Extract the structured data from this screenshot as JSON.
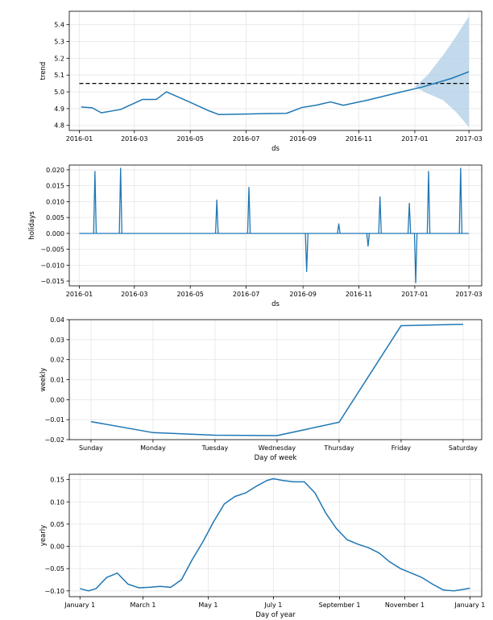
{
  "colors": {
    "line": "#1f77b4",
    "band": "#aecde5",
    "dashed": "#000000",
    "grid": "#e6e6e6"
  },
  "chart_data": [
    {
      "type": "line",
      "name": "trend-panel",
      "xlabel": "ds",
      "ylabel": "trend",
      "x_axis": "date",
      "xlim": [
        "2015-12-21",
        "2017-03-15"
      ],
      "ylim": [
        4.77,
        5.48
      ],
      "xticks": [
        {
          "v": "2016-01-01",
          "label": "2016-01"
        },
        {
          "v": "2016-03-01",
          "label": "2016-03"
        },
        {
          "v": "2016-05-01",
          "label": "2016-05"
        },
        {
          "v": "2016-07-01",
          "label": "2016-07"
        },
        {
          "v": "2016-09-01",
          "label": "2016-09"
        },
        {
          "v": "2016-11-01",
          "label": "2016-11"
        },
        {
          "v": "2017-01-01",
          "label": "2017-01"
        },
        {
          "v": "2017-03-01",
          "label": "2017-03"
        }
      ],
      "yticks": [
        4.8,
        4.9,
        5.0,
        5.1,
        5.2,
        5.3,
        5.4
      ],
      "grid": true,
      "series": [
        {
          "style": "line",
          "x": [
            "2016-01-03",
            "2016-01-15",
            "2016-01-25",
            "2016-02-15",
            "2016-03-10",
            "2016-03-25",
            "2016-04-05",
            "2016-04-28",
            "2016-05-20",
            "2016-06-01",
            "2016-07-01",
            "2016-07-20",
            "2016-08-14",
            "2016-08-31",
            "2016-09-15",
            "2016-10-01",
            "2016-10-15",
            "2016-11-10",
            "2016-12-10",
            "2017-01-10",
            "2017-02-10",
            "2017-03-01"
          ],
          "y": [
            4.91,
            4.905,
            4.875,
            4.895,
            4.955,
            4.955,
            5.0,
            4.945,
            4.89,
            4.865,
            4.868,
            4.87,
            4.872,
            4.907,
            4.92,
            4.94,
            4.92,
            4.95,
            4.99,
            5.03,
            5.08,
            5.12
          ]
        },
        {
          "style": "band",
          "x": [
            "2017-01-01",
            "2017-01-15",
            "2017-02-01",
            "2017-02-15",
            "2017-03-01"
          ],
          "upper": [
            5.03,
            5.1,
            5.22,
            5.33,
            5.45
          ],
          "lower": [
            5.03,
            4.99,
            4.95,
            4.88,
            4.79
          ]
        },
        {
          "style": "dashed",
          "x": [
            "2016-01-01",
            "2017-03-01"
          ],
          "y": [
            5.05,
            5.05
          ]
        }
      ]
    },
    {
      "type": "line",
      "name": "holidays-panel",
      "xlabel": "ds",
      "ylabel": "holidays",
      "x_axis": "date",
      "xlim": [
        "2015-12-21",
        "2017-03-15"
      ],
      "ylim": [
        -0.0165,
        0.0215
      ],
      "xticks": [
        {
          "v": "2016-01-01",
          "label": "2016-01"
        },
        {
          "v": "2016-03-01",
          "label": "2016-03"
        },
        {
          "v": "2016-05-01",
          "label": "2016-05"
        },
        {
          "v": "2016-07-01",
          "label": "2016-07"
        },
        {
          "v": "2016-09-01",
          "label": "2016-09"
        },
        {
          "v": "2016-11-01",
          "label": "2016-11"
        },
        {
          "v": "2017-01-01",
          "label": "2017-01"
        },
        {
          "v": "2017-03-01",
          "label": "2017-03"
        }
      ],
      "yticks": [
        {
          "v": -0.015,
          "label": "−0.015"
        },
        {
          "v": -0.01,
          "label": "−0.010"
        },
        {
          "v": -0.005,
          "label": "−0.005"
        },
        {
          "v": 0.0,
          "label": "0.000"
        },
        {
          "v": 0.005,
          "label": "0.005"
        },
        {
          "v": 0.01,
          "label": "0.010"
        },
        {
          "v": 0.015,
          "label": "0.015"
        },
        {
          "v": 0.02,
          "label": "0.020"
        }
      ],
      "grid": true,
      "baseline": {
        "start": "2016-01-01",
        "end": "2017-03-01",
        "value": 0
      },
      "spikes": [
        {
          "date": "2016-01-18",
          "value": 0.0195
        },
        {
          "date": "2016-02-15",
          "value": 0.0205
        },
        {
          "date": "2016-05-30",
          "value": 0.0105
        },
        {
          "date": "2016-07-04",
          "value": 0.0145
        },
        {
          "date": "2016-09-05",
          "value": -0.012
        },
        {
          "date": "2016-10-10",
          "value": 0.003
        },
        {
          "date": "2016-11-11",
          "value": -0.004
        },
        {
          "date": "2016-11-24",
          "value": 0.0115
        },
        {
          "date": "2016-12-26",
          "value": 0.0095
        },
        {
          "date": "2017-01-02",
          "value": -0.0155
        },
        {
          "date": "2017-01-16",
          "value": 0.0195
        },
        {
          "date": "2017-02-20",
          "value": 0.0205
        }
      ]
    },
    {
      "type": "line",
      "name": "weekly-panel",
      "xlabel": "Day of week",
      "ylabel": "weekly",
      "categories": [
        "Sunday",
        "Monday",
        "Tuesday",
        "Wednesday",
        "Thursday",
        "Friday",
        "Saturday"
      ],
      "xlim": [
        -0.35,
        6.3
      ],
      "ylim": [
        -0.02,
        0.04
      ],
      "yticks": [
        {
          "v": -0.02,
          "label": "−0.02"
        },
        {
          "v": -0.01,
          "label": "−0.01"
        },
        {
          "v": 0.0,
          "label": "0.00"
        },
        {
          "v": 0.01,
          "label": "0.01"
        },
        {
          "v": 0.02,
          "label": "0.02"
        },
        {
          "v": 0.03,
          "label": "0.03"
        },
        {
          "v": 0.04,
          "label": "0.04"
        }
      ],
      "grid": true,
      "series": [
        {
          "style": "line",
          "values": [
            -0.011,
            -0.0165,
            -0.0178,
            -0.018,
            -0.0113,
            0.037,
            0.0377
          ]
        }
      ]
    },
    {
      "type": "line",
      "name": "yearly-panel",
      "xlabel": "Day of year",
      "ylabel": "yearly",
      "x_axis": "day_of_year",
      "xlim": [
        -10,
        376
      ],
      "ylim": [
        -0.113,
        0.162
      ],
      "xticks": [
        {
          "v": 0,
          "label": "January 1"
        },
        {
          "v": 59,
          "label": "March 1"
        },
        {
          "v": 120,
          "label": "May 1"
        },
        {
          "v": 181,
          "label": "July 1"
        },
        {
          "v": 243,
          "label": "September 1"
        },
        {
          "v": 304,
          "label": "November 1"
        },
        {
          "v": 365,
          "label": "January 1"
        }
      ],
      "yticks": [
        {
          "v": -0.1,
          "label": "−0.10"
        },
        {
          "v": -0.05,
          "label": "−0.05"
        },
        {
          "v": 0.0,
          "label": "0.00"
        },
        {
          "v": 0.05,
          "label": "0.05"
        },
        {
          "v": 0.1,
          "label": "0.10"
        },
        {
          "v": 0.15,
          "label": "0.15"
        }
      ],
      "grid": true,
      "series": [
        {
          "style": "line",
          "x": [
            0,
            8,
            15,
            25,
            35,
            45,
            55,
            65,
            75,
            85,
            95,
            105,
            115,
            125,
            135,
            145,
            155,
            165,
            175,
            181,
            190,
            200,
            210,
            220,
            230,
            240,
            250,
            260,
            270,
            280,
            290,
            300,
            310,
            320,
            330,
            340,
            350,
            358,
            365
          ],
          "y": [
            -0.095,
            -0.1,
            -0.095,
            -0.07,
            -0.06,
            -0.085,
            -0.093,
            -0.092,
            -0.09,
            -0.092,
            -0.075,
            -0.03,
            0.01,
            0.055,
            0.095,
            0.112,
            0.12,
            0.135,
            0.148,
            0.152,
            0.148,
            0.145,
            0.145,
            0.12,
            0.075,
            0.04,
            0.015,
            0.005,
            -0.003,
            -0.015,
            -0.035,
            -0.05,
            -0.06,
            -0.07,
            -0.085,
            -0.098,
            -0.1,
            -0.097,
            -0.094
          ]
        }
      ]
    }
  ]
}
